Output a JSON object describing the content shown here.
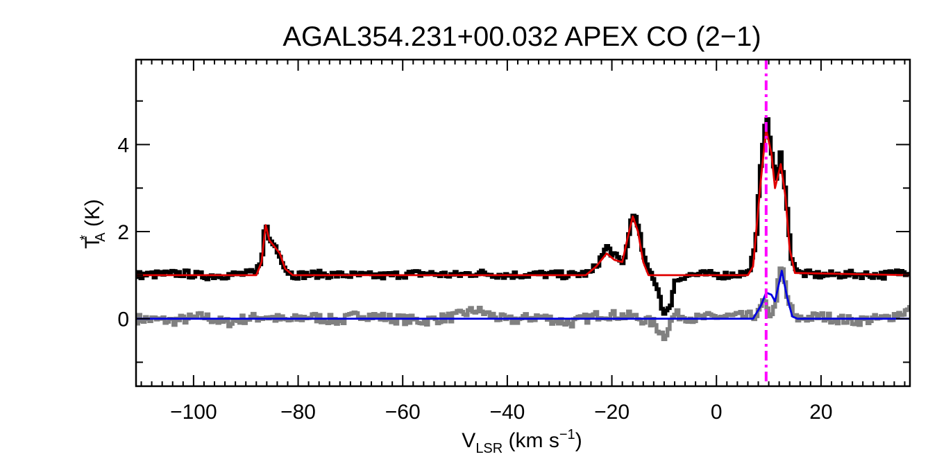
{
  "chart_data": {
    "type": "line",
    "title": "AGAL354.231+00.032  APEX CO (2−1)",
    "xlabel": {
      "main": "V",
      "sub": "LSR",
      "unit_pre": " (km s",
      "unit_sup": "−1",
      "unit_post": ")"
    },
    "ylabel": {
      "main": "T",
      "sup": "*",
      "sub": "A",
      "unit": " (K)"
    },
    "xlim": [
      -111,
      37
    ],
    "ylim": [
      -1.55,
      5.95
    ],
    "xticks": [
      -100,
      -80,
      -60,
      -40,
      -20,
      0,
      20
    ],
    "xtick_labels": [
      "−100",
      "−80",
      "−60",
      "−40",
      "−20",
      "0",
      "20"
    ],
    "xminor_step": 2,
    "yticks": [
      0,
      2,
      4
    ],
    "ytick_labels": [
      "0",
      "2",
      "4"
    ],
    "yminor_step": 1,
    "grid": false,
    "vline": {
      "x": 9.5,
      "color": "#ff00ff",
      "style": "dash-dot"
    },
    "series": [
      {
        "role": "observed spectrum (offset +1 K)",
        "color": "#000000",
        "style": "histogram",
        "points": [
          [
            -111,
            1.0
          ],
          [
            -106,
            1.02
          ],
          [
            -102,
            1.04
          ],
          [
            -98,
            0.98
          ],
          [
            -94,
            1.0
          ],
          [
            -90,
            1.03
          ],
          [
            -88,
            1.05
          ],
          [
            -87,
            1.4
          ],
          [
            -86.2,
            2.2
          ],
          [
            -85.5,
            1.8
          ],
          [
            -84.5,
            1.7
          ],
          [
            -83.5,
            1.5
          ],
          [
            -82.5,
            1.15
          ],
          [
            -81,
            1.0
          ],
          [
            -76,
            1.02
          ],
          [
            -70,
            1.0
          ],
          [
            -64,
            0.98
          ],
          [
            -60,
            1.02
          ],
          [
            -56,
            1.04
          ],
          [
            -50,
            1.0
          ],
          [
            -46,
            1.05
          ],
          [
            -40,
            1.0
          ],
          [
            -34,
            1.02
          ],
          [
            -28,
            1.0
          ],
          [
            -24,
            1.05
          ],
          [
            -22,
            1.4
          ],
          [
            -21,
            1.65
          ],
          [
            -19.5,
            1.45
          ],
          [
            -18,
            1.25
          ],
          [
            -17,
            1.7
          ],
          [
            -16,
            2.5
          ],
          [
            -15,
            2.1
          ],
          [
            -13.5,
            1.2
          ],
          [
            -12,
            0.95
          ],
          [
            -11,
            0.6
          ],
          [
            -10,
            0.1
          ],
          [
            -9,
            0.2
          ],
          [
            -8,
            0.85
          ],
          [
            -6,
            1.0
          ],
          [
            -2,
            1.02
          ],
          [
            2,
            1.0
          ],
          [
            6,
            1.05
          ],
          [
            7.5,
            1.6
          ],
          [
            8.5,
            3.6
          ],
          [
            9.5,
            4.7
          ],
          [
            10.5,
            3.9
          ],
          [
            11.5,
            3.1
          ],
          [
            12.3,
            3.8
          ],
          [
            13.2,
            3.0
          ],
          [
            14.2,
            1.5
          ],
          [
            15.5,
            1.05
          ],
          [
            20,
            1.0
          ],
          [
            26,
            1.02
          ],
          [
            32,
            1.0
          ],
          [
            37,
            1.1
          ]
        ]
      },
      {
        "role": "residual",
        "color": "#808080",
        "style": "histogram",
        "points": [
          [
            -111,
            0.0
          ],
          [
            -104,
            -0.05
          ],
          [
            -98,
            0.05
          ],
          [
            -94,
            -0.1
          ],
          [
            -90,
            0.0
          ],
          [
            -86,
            0.05
          ],
          [
            -82,
            -0.05
          ],
          [
            -78,
            0.05
          ],
          [
            -72,
            -0.05
          ],
          [
            -68,
            0.1
          ],
          [
            -62,
            0.0
          ],
          [
            -56,
            -0.05
          ],
          [
            -50,
            0.05
          ],
          [
            -46,
            0.2
          ],
          [
            -40,
            -0.05
          ],
          [
            -34,
            0.05
          ],
          [
            -28,
            -0.1
          ],
          [
            -22,
            0.1
          ],
          [
            -16,
            0.05
          ],
          [
            -12,
            -0.1
          ],
          [
            -10,
            -0.4
          ],
          [
            -8,
            0.1
          ],
          [
            -4,
            0.0
          ],
          [
            0,
            0.05
          ],
          [
            6,
            0.05
          ],
          [
            8,
            0.1
          ],
          [
            9,
            0.4
          ],
          [
            10,
            0.1
          ],
          [
            11,
            0.2
          ],
          [
            12.5,
            1.25
          ],
          [
            13.5,
            0.5
          ],
          [
            15,
            0.0
          ],
          [
            20,
            0.05
          ],
          [
            26,
            -0.05
          ],
          [
            32,
            0.0
          ],
          [
            37,
            0.2
          ]
        ]
      },
      {
        "role": "Gaussian fit (offset +1 K)",
        "color": "#e00000",
        "style": "smooth",
        "points": [
          [
            -111,
            1.0
          ],
          [
            -88,
            1.0
          ],
          [
            -87,
            1.3
          ],
          [
            -86.2,
            2.15
          ],
          [
            -85.5,
            1.8
          ],
          [
            -84.5,
            1.65
          ],
          [
            -83.5,
            1.5
          ],
          [
            -82.5,
            1.15
          ],
          [
            -81,
            1.0
          ],
          [
            -25,
            1.0
          ],
          [
            -23,
            1.2
          ],
          [
            -21,
            1.5
          ],
          [
            -19.5,
            1.35
          ],
          [
            -18,
            1.3
          ],
          [
            -17,
            1.85
          ],
          [
            -16,
            2.35
          ],
          [
            -15,
            2.0
          ],
          [
            -14,
            1.3
          ],
          [
            -13,
            1.0
          ],
          [
            6,
            1.0
          ],
          [
            7,
            1.2
          ],
          [
            8.5,
            3.2
          ],
          [
            9.5,
            4.35
          ],
          [
            10.5,
            3.8
          ],
          [
            11.2,
            3.0
          ],
          [
            12.3,
            3.55
          ],
          [
            13.2,
            2.8
          ],
          [
            14,
            1.6
          ],
          [
            15,
            1.05
          ],
          [
            37,
            1.0
          ]
        ]
      },
      {
        "role": "Gaussian fit (baseline)",
        "color": "#0000e0",
        "style": "smooth",
        "points": [
          [
            -111,
            0.0
          ],
          [
            7,
            0.0
          ],
          [
            8.5,
            0.3
          ],
          [
            9.5,
            0.6
          ],
          [
            10.5,
            0.55
          ],
          [
            11.2,
            0.4
          ],
          [
            12.5,
            1.1
          ],
          [
            13.5,
            0.5
          ],
          [
            14.5,
            0.05
          ],
          [
            15.5,
            0.0
          ],
          [
            37,
            0.0
          ]
        ]
      }
    ]
  }
}
